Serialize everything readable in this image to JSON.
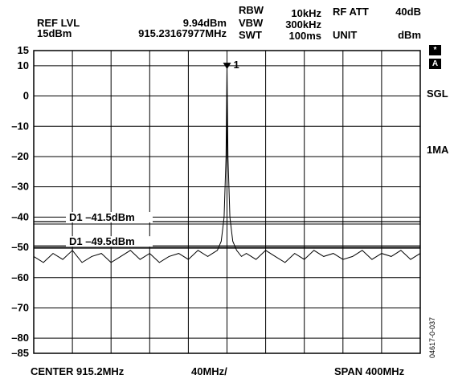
{
  "header": {
    "ref_lvl_label": "REF LVL",
    "ref_lvl_value": "15dBm",
    "marker_level": "9.94dBm",
    "marker_freq": "915.23167977MHz",
    "rbw_label": "RBW",
    "rbw_value": "10kHz",
    "vbw_label": "VBW",
    "vbw_value": "300kHz",
    "swt_label": "SWT",
    "swt_value": "100ms",
    "rf_att_label": "RF ATT",
    "rf_att_value": "40dB",
    "unit_label": "UNIT",
    "unit_value": "dBm"
  },
  "side": {
    "star_badge": "*",
    "a_badge": "A",
    "sgl": "SGL",
    "ma": "1MA",
    "figure_id": "04617-0-037"
  },
  "footer": {
    "center": "CENTER 915.2MHz",
    "per_div": "40MHz/",
    "span": "SPAN 400MHz"
  },
  "chart_data": {
    "type": "line",
    "title": "",
    "xlabel": "",
    "ylabel": "",
    "xlim": [
      715.2,
      1115.2
    ],
    "ylim": [
      -85,
      15
    ],
    "y_ticks": [
      15,
      10,
      0,
      -10,
      -20,
      -30,
      -40,
      -50,
      -60,
      -70,
      -80,
      -85
    ],
    "y_tick_labels": [
      "15",
      "10",
      "0",
      "–10",
      "–20",
      "–30",
      "–40",
      "–50",
      "–60",
      "–70",
      "–80",
      "–85"
    ],
    "x_divisions": 10,
    "grid": true,
    "marker": {
      "label": "1",
      "x": 915.23,
      "y": 9.94
    },
    "display_lines": [
      {
        "label": "D1 –41.5dBm",
        "y": -41.5
      },
      {
        "label": "D1 –49.5dBm",
        "y": -49.5
      }
    ],
    "series": [
      {
        "x": [
          715.2,
          725.2,
          735.2,
          745.2,
          755.2,
          765.2,
          775.2,
          785.2,
          795.2,
          805.2,
          815.2,
          825.2,
          835.2,
          845.2,
          855.2,
          865.2,
          875.2,
          885.2,
          895.2,
          900.2,
          905.2,
          909.2,
          912.2,
          914.2,
          915.23,
          916.2,
          918.2,
          921.2,
          925.2,
          930.2,
          935.2,
          945.2,
          955.2,
          965.2,
          975.2,
          985.2,
          995.2,
          1005.2,
          1015.2,
          1025.2,
          1035.2,
          1045.2,
          1055.2,
          1065.2,
          1075.2,
          1085.2,
          1095.2,
          1105.2,
          1115.2
        ],
        "values": [
          -53,
          -55,
          -52,
          -54,
          -51,
          -55,
          -53,
          -52,
          -55,
          -53,
          -51,
          -54,
          -52,
          -55,
          -53,
          -52,
          -54,
          -51,
          -53,
          -52,
          -51,
          -48,
          -40,
          -20,
          9.94,
          -20,
          -40,
          -48,
          -51,
          -53,
          -52,
          -54,
          -51,
          -53,
          -55,
          -52,
          -54,
          -51,
          -53,
          -52,
          -54,
          -53,
          -51,
          -54,
          -52,
          -53,
          -51,
          -54,
          -52
        ]
      }
    ]
  }
}
